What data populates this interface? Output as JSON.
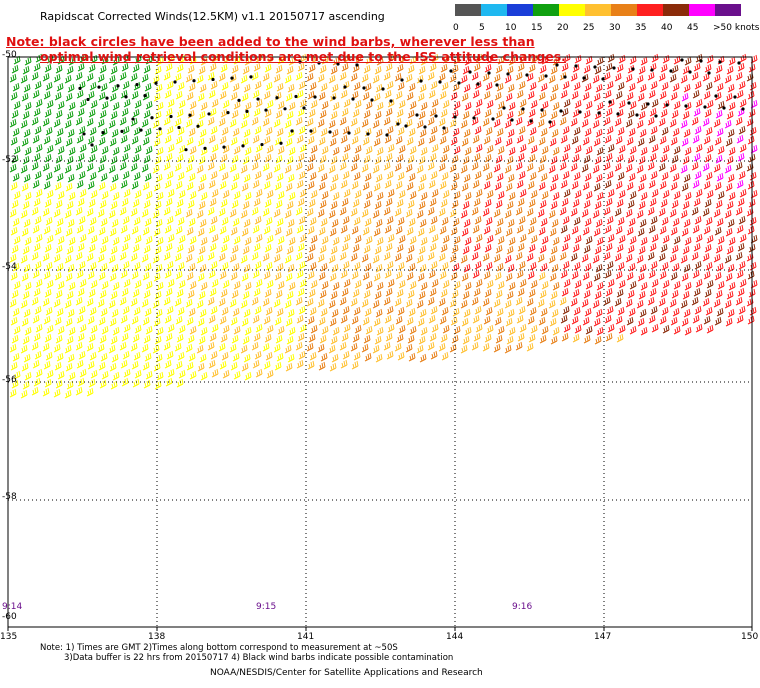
{
  "title": "Rapidscat Corrected Winds(12.5KM) v1.1 20150717 ascending",
  "legend": {
    "labels": [
      "0",
      "5",
      "10",
      "15",
      "20",
      "25",
      "30",
      "35",
      "40",
      "45",
      ">50 knots"
    ],
    "colors": [
      "#555555",
      "#1fb8f0",
      "#1a3ed8",
      "#10a010",
      "#ffff00",
      "#ffc030",
      "#e88018",
      "#ff2020",
      "#8b2b0a",
      "#ff00ff",
      "#6a0f8c"
    ]
  },
  "note": {
    "line1": "Note: black circles have been added to the wind barbs, wherever less than",
    "line2": "optimal wind retrieval conditions are met due to the ISS attitude changes."
  },
  "axes": {
    "lat_labels": [
      "-50",
      "-52",
      "-54",
      "-56",
      "-58",
      "-60"
    ],
    "lon_labels": [
      "135",
      "138",
      "141",
      "144",
      "147",
      "150"
    ]
  },
  "times": [
    "9:14",
    "9:15",
    "9:16"
  ],
  "footer": {
    "line1": "Note: 1) Times are GMT 2)Times along bottom correspond to measurement at ~50S",
    "line2": "3)Data buffer is 22 hrs from 20150717 4) Black wind barbs indicate possible contamination"
  },
  "credit": "NOAA/NESDIS/Center for Satellite Applications and Research"
}
